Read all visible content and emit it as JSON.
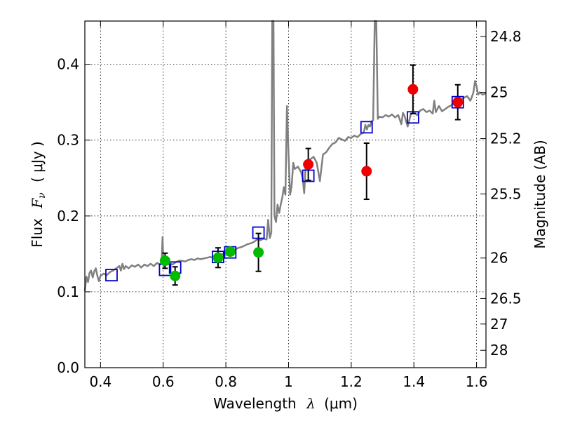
{
  "chart_data": {
    "type": "scatter",
    "title": "",
    "xlabel": "Wavelength",
    "xlabel_symbol": "λ",
    "xlabel_unit": "(μm)",
    "ylabel": "Flux",
    "ylabel_symbol": "F",
    "ylabel_subscript": "ν",
    "ylabel_unit": "( μJy )",
    "y2label": "Magnitude (AB)",
    "xlim": [
      0.35,
      1.63
    ],
    "ylim": [
      0.0,
      0.457
    ],
    "grid": true,
    "x_ticks": [
      {
        "value": 0.4,
        "label": "0.4"
      },
      {
        "value": 0.6,
        "label": "0.6"
      },
      {
        "value": 0.8,
        "label": "0.8"
      },
      {
        "value": 1.0,
        "label": "1"
      },
      {
        "value": 1.2,
        "label": "1.2"
      },
      {
        "value": 1.4,
        "label": "1.4"
      },
      {
        "value": 1.6,
        "label": "1.6"
      }
    ],
    "y_ticks": [
      {
        "value": 0.0,
        "label": "0.0"
      },
      {
        "value": 0.1,
        "label": "0.1"
      },
      {
        "value": 0.2,
        "label": "0.2"
      },
      {
        "value": 0.3,
        "label": "0.3"
      },
      {
        "value": 0.4,
        "label": "0.4"
      }
    ],
    "mag_ticks": [
      {
        "value": 24.8,
        "label": "24.8"
      },
      {
        "value": 25.0,
        "label": "25"
      },
      {
        "value": 25.2,
        "label": "25.2"
      },
      {
        "value": 25.5,
        "label": "25.5"
      },
      {
        "value": 26.0,
        "label": "26"
      },
      {
        "value": 26.5,
        "label": "26.5"
      },
      {
        "value": 27.0,
        "label": "27"
      },
      {
        "value": 28.0,
        "label": "28"
      }
    ],
    "model_spectrum": {
      "color": "#808080",
      "points": [
        [
          0.35,
          0.101
        ],
        [
          0.355,
          0.12
        ],
        [
          0.36,
          0.113
        ],
        [
          0.365,
          0.125
        ],
        [
          0.37,
          0.128
        ],
        [
          0.375,
          0.119
        ],
        [
          0.38,
          0.127
        ],
        [
          0.385,
          0.131
        ],
        [
          0.39,
          0.121
        ],
        [
          0.395,
          0.114
        ],
        [
          0.4,
          0.121
        ],
        [
          0.41,
          0.124
        ],
        [
          0.42,
          0.122
        ],
        [
          0.43,
          0.126
        ],
        [
          0.44,
          0.128
        ],
        [
          0.45,
          0.131
        ],
        [
          0.46,
          0.134
        ],
        [
          0.465,
          0.128
        ],
        [
          0.47,
          0.137
        ],
        [
          0.475,
          0.13
        ],
        [
          0.48,
          0.134
        ],
        [
          0.49,
          0.131
        ],
        [
          0.5,
          0.135
        ],
        [
          0.51,
          0.133
        ],
        [
          0.52,
          0.136
        ],
        [
          0.53,
          0.132
        ],
        [
          0.54,
          0.136
        ],
        [
          0.55,
          0.134
        ],
        [
          0.56,
          0.137
        ],
        [
          0.57,
          0.134
        ],
        [
          0.58,
          0.138
        ],
        [
          0.59,
          0.136
        ],
        [
          0.595,
          0.139
        ],
        [
          0.598,
          0.172
        ],
        [
          0.601,
          0.131
        ],
        [
          0.61,
          0.137
        ],
        [
          0.62,
          0.138
        ],
        [
          0.63,
          0.136
        ],
        [
          0.64,
          0.139
        ],
        [
          0.65,
          0.141
        ],
        [
          0.66,
          0.141
        ],
        [
          0.67,
          0.14
        ],
        [
          0.68,
          0.142
        ],
        [
          0.69,
          0.143
        ],
        [
          0.7,
          0.142
        ],
        [
          0.71,
          0.144
        ],
        [
          0.72,
          0.143
        ],
        [
          0.73,
          0.144
        ],
        [
          0.74,
          0.145
        ],
        [
          0.75,
          0.146
        ],
        [
          0.76,
          0.145
        ],
        [
          0.77,
          0.147
        ],
        [
          0.78,
          0.148
        ],
        [
          0.79,
          0.15
        ],
        [
          0.8,
          0.151
        ],
        [
          0.81,
          0.153
        ],
        [
          0.82,
          0.155
        ],
        [
          0.83,
          0.156
        ],
        [
          0.84,
          0.158
        ],
        [
          0.85,
          0.159
        ],
        [
          0.86,
          0.161
        ],
        [
          0.87,
          0.163
        ],
        [
          0.88,
          0.164
        ],
        [
          0.89,
          0.166
        ],
        [
          0.9,
          0.169
        ],
        [
          0.905,
          0.171
        ],
        [
          0.91,
          0.168
        ],
        [
          0.92,
          0.17
        ],
        [
          0.93,
          0.169
        ],
        [
          0.935,
          0.195
        ],
        [
          0.94,
          0.171
        ],
        [
          0.945,
          0.178
        ],
        [
          0.948,
          0.457
        ],
        [
          0.952,
          0.457
        ],
        [
          0.955,
          0.2
        ],
        [
          0.96,
          0.192
        ],
        [
          0.965,
          0.215
        ],
        [
          0.97,
          0.204
        ],
        [
          0.975,
          0.215
        ],
        [
          0.98,
          0.224
        ],
        [
          0.985,
          0.238
        ],
        [
          0.99,
          0.228
        ],
        [
          0.995,
          0.345
        ],
        [
          1.0,
          0.28
        ],
        [
          1.005,
          0.228
        ],
        [
          1.01,
          0.24
        ],
        [
          1.015,
          0.27
        ],
        [
          1.02,
          0.262
        ],
        [
          1.03,
          0.265
        ],
        [
          1.04,
          0.258
        ],
        [
          1.045,
          0.25
        ],
        [
          1.05,
          0.23
        ],
        [
          1.055,
          0.27
        ],
        [
          1.06,
          0.273
        ],
        [
          1.07,
          0.275
        ],
        [
          1.08,
          0.278
        ],
        [
          1.09,
          0.27
        ],
        [
          1.1,
          0.246
        ],
        [
          1.11,
          0.281
        ],
        [
          1.12,
          0.284
        ],
        [
          1.13,
          0.29
        ],
        [
          1.14,
          0.295
        ],
        [
          1.15,
          0.297
        ],
        [
          1.16,
          0.303
        ],
        [
          1.17,
          0.301
        ],
        [
          1.18,
          0.299
        ],
        [
          1.19,
          0.304
        ],
        [
          1.2,
          0.303
        ],
        [
          1.21,
          0.306
        ],
        [
          1.22,
          0.304
        ],
        [
          1.23,
          0.308
        ],
        [
          1.24,
          0.31
        ],
        [
          1.245,
          0.32
        ],
        [
          1.25,
          0.314
        ],
        [
          1.255,
          0.32
        ],
        [
          1.26,
          0.318
        ],
        [
          1.265,
          0.325
        ],
        [
          1.27,
          0.326
        ],
        [
          1.275,
          0.457
        ],
        [
          1.28,
          0.457
        ],
        [
          1.285,
          0.328
        ],
        [
          1.29,
          0.331
        ],
        [
          1.3,
          0.33
        ],
        [
          1.31,
          0.333
        ],
        [
          1.32,
          0.331
        ],
        [
          1.33,
          0.334
        ],
        [
          1.34,
          0.33
        ],
        [
          1.35,
          0.333
        ],
        [
          1.36,
          0.321
        ],
        [
          1.365,
          0.336
        ],
        [
          1.37,
          0.332
        ],
        [
          1.38,
          0.318
        ],
        [
          1.39,
          0.334
        ],
        [
          1.4,
          0.337
        ],
        [
          1.41,
          0.333
        ],
        [
          1.42,
          0.339
        ],
        [
          1.43,
          0.341
        ],
        [
          1.44,
          0.337
        ],
        [
          1.45,
          0.339
        ],
        [
          1.46,
          0.335
        ],
        [
          1.465,
          0.352
        ],
        [
          1.47,
          0.337
        ],
        [
          1.48,
          0.345
        ],
        [
          1.49,
          0.338
        ],
        [
          1.5,
          0.341
        ],
        [
          1.51,
          0.344
        ],
        [
          1.52,
          0.346
        ],
        [
          1.53,
          0.35
        ],
        [
          1.54,
          0.348
        ],
        [
          1.55,
          0.353
        ],
        [
          1.56,
          0.356
        ],
        [
          1.57,
          0.358
        ],
        [
          1.58,
          0.352
        ],
        [
          1.585,
          0.357
        ],
        [
          1.59,
          0.363
        ],
        [
          1.595,
          0.378
        ],
        [
          1.6,
          0.371
        ],
        [
          1.605,
          0.36
        ],
        [
          1.61,
          0.363
        ],
        [
          1.62,
          0.36
        ],
        [
          1.63,
          0.362
        ]
      ]
    },
    "model_photometry": {
      "color": "#0000cc",
      "points": [
        [
          0.435,
          0.122
        ],
        [
          0.606,
          0.129
        ],
        [
          0.638,
          0.132
        ],
        [
          0.775,
          0.146
        ],
        [
          0.814,
          0.152
        ],
        [
          0.904,
          0.178
        ],
        [
          1.063,
          0.253
        ],
        [
          1.249,
          0.317
        ],
        [
          1.397,
          0.33
        ],
        [
          1.54,
          0.35
        ]
      ]
    },
    "observed_optical": {
      "color": "#00bb00",
      "points": [
        {
          "x": 0.606,
          "y": 0.141,
          "err": 0.01
        },
        {
          "x": 0.638,
          "y": 0.121,
          "err": 0.012
        },
        {
          "x": 0.775,
          "y": 0.145,
          "err": 0.013
        },
        {
          "x": 0.814,
          "y": 0.153,
          "err": 0.0
        },
        {
          "x": 0.904,
          "y": 0.152,
          "err": 0.025
        }
      ]
    },
    "observed_nir": {
      "color": "#ee0000",
      "points": [
        {
          "x": 1.063,
          "y": 0.268,
          "err": 0.021
        },
        {
          "x": 1.249,
          "y": 0.259,
          "err": 0.037
        },
        {
          "x": 1.397,
          "y": 0.367,
          "err": 0.032
        },
        {
          "x": 1.54,
          "y": 0.35,
          "err": 0.023
        }
      ]
    }
  }
}
